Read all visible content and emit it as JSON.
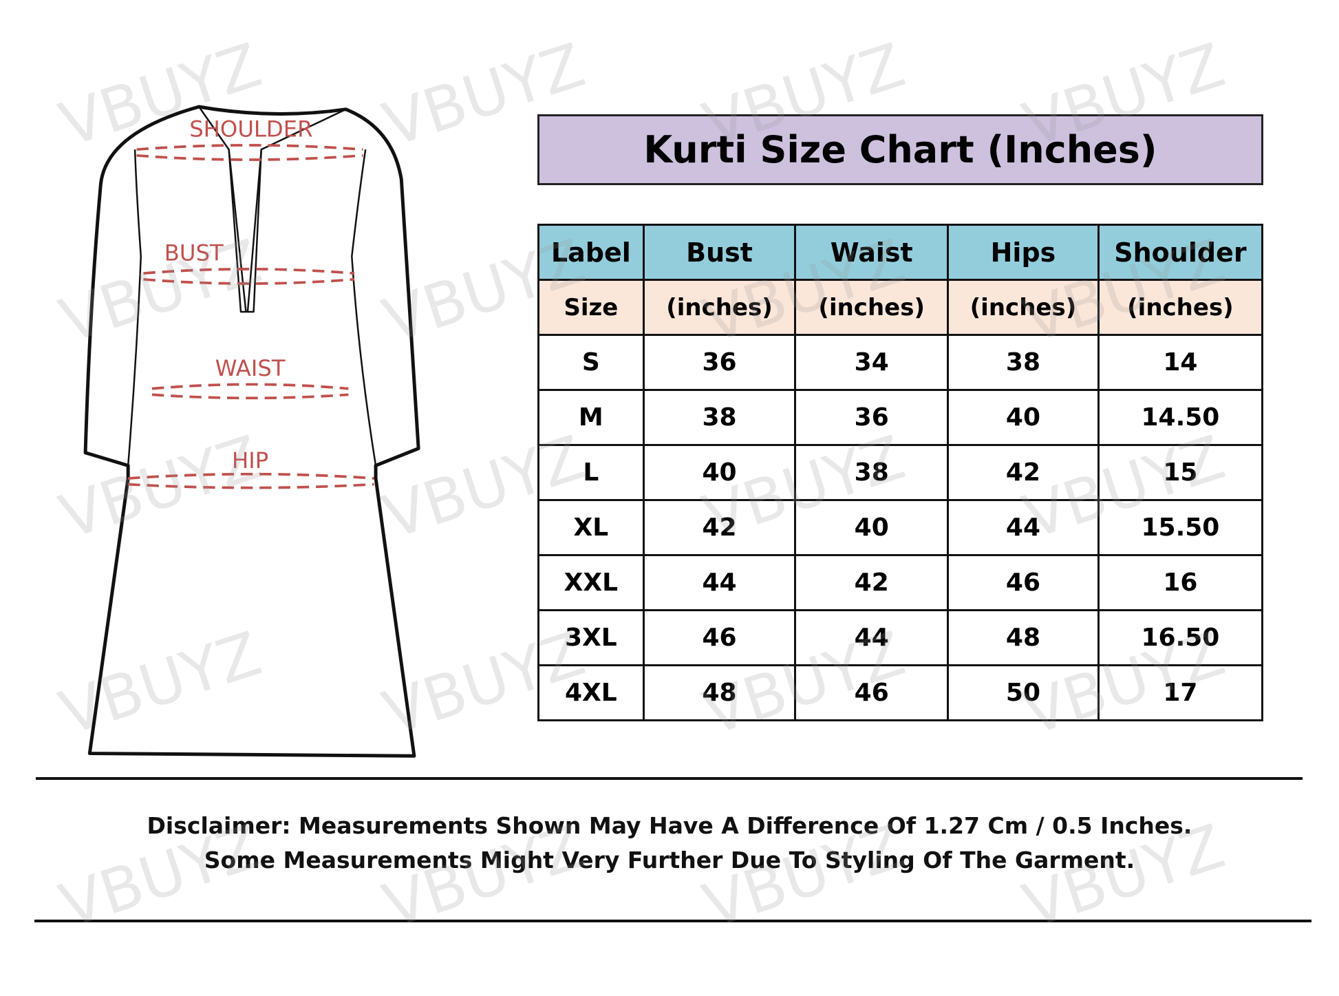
{
  "diagram": {
    "labels": [
      "SHOULDER",
      "BUST",
      "WAIST",
      "HIP"
    ],
    "outline_color": "#111111",
    "measure_color": "#c0504d"
  },
  "title": "Kurti Size Chart (Inches)",
  "table": {
    "header": [
      "Label",
      "Bust",
      "Waist",
      "Hips",
      "Shoulder"
    ],
    "subheader": [
      "Size",
      "(inches)",
      "(inches)",
      "(inches)",
      "(inches)"
    ],
    "rows": [
      [
        "S",
        "36",
        "34",
        "38",
        "14"
      ],
      [
        "M",
        "38",
        "36",
        "40",
        "14.50"
      ],
      [
        "L",
        "40",
        "38",
        "42",
        "15"
      ],
      [
        "XL",
        "42",
        "40",
        "44",
        "15.50"
      ],
      [
        "XXL",
        "44",
        "42",
        "46",
        "16"
      ],
      [
        "3XL",
        "46",
        "44",
        "48",
        "16.50"
      ],
      [
        "4XL",
        "48",
        "46",
        "50",
        "17"
      ]
    ],
    "colors": {
      "header": "#93cddc",
      "subheader": "#fbe7da",
      "title": "#cdc1de"
    }
  },
  "disclaimer": [
    "Disclaimer: Measurements Shown May Have A Difference Of 1.27 Cm / 0.5 Inches.",
    "Some Measurements Might Very Further Due To Styling Of The Garment."
  ],
  "watermark": "VBUYZ"
}
